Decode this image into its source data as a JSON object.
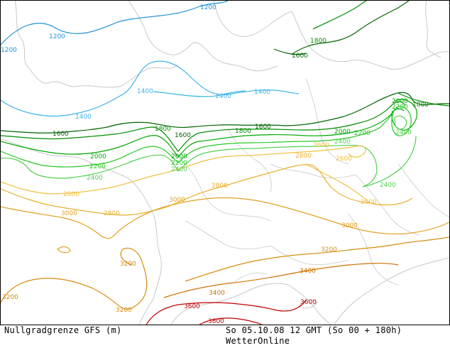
{
  "map": {
    "isolines": [
      {
        "level": 1200,
        "color": "#1e90d8"
      },
      {
        "level": 1400,
        "color": "#3cb4e6"
      },
      {
        "level": 1600,
        "color": "#006400"
      },
      {
        "level": 1800,
        "color": "#008c00"
      },
      {
        "level": 2000,
        "color": "#00a800"
      },
      {
        "level": 2200,
        "color": "#28c828"
      },
      {
        "level": 2400,
        "color": "#50d050"
      },
      {
        "level": 2600,
        "color": "#f0c040"
      },
      {
        "level": 2800,
        "color": "#e8b030"
      },
      {
        "level": 3000,
        "color": "#e0a020"
      },
      {
        "level": 3200,
        "color": "#d88c10"
      },
      {
        "level": 3400,
        "color": "#d07000"
      },
      {
        "level": 3600,
        "color": "#c00000"
      },
      {
        "level": 3800,
        "color": "#c00000"
      }
    ],
    "labels": [
      "1200",
      "1200",
      "1200",
      "1400",
      "1400",
      "1400",
      "1400",
      "1600",
      "1600",
      "1600",
      "1600",
      "1800",
      "1800",
      "1800",
      "1800",
      "1800",
      "1800",
      "2000",
      "2000",
      "2000",
      "2000",
      "2200",
      "2200",
      "2200",
      "2200",
      "2400",
      "2400",
      "2400",
      "2400",
      "2400",
      "2600",
      "2600",
      "2600",
      "2600",
      "2800",
      "2800",
      "2800",
      "2800",
      "3000",
      "3000",
      "3000",
      "3200",
      "3200",
      "3200",
      "3200",
      "3400",
      "3400",
      "3600",
      "3600",
      "3800"
    ]
  },
  "footer": {
    "left": "Nullgradgrenze  GFS (m)",
    "right": "So 05.10.08 12 GMT (So 00 + 180h)",
    "brand": "WetterOnline"
  }
}
